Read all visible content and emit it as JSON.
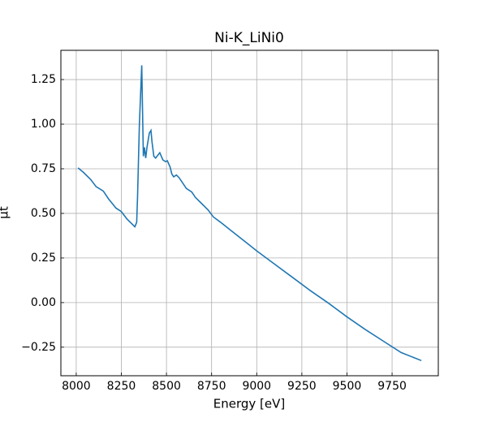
{
  "chart_data": {
    "type": "line",
    "title": "Ni-K_LiNi0",
    "xlabel": "Energy [eV]",
    "ylabel": "μt",
    "x": [
      8010,
      8040,
      8080,
      8110,
      8150,
      8180,
      8220,
      8250,
      8280,
      8325,
      8335,
      8340,
      8350,
      8363,
      8367,
      8372,
      8378,
      8385,
      8392,
      8405,
      8414,
      8420,
      8430,
      8440,
      8463,
      8480,
      8495,
      8505,
      8520,
      8530,
      8540,
      8555,
      8570,
      8590,
      8610,
      8640,
      8660,
      8690,
      8730,
      8760,
      8800,
      8850,
      8900,
      8950,
      9000,
      9100,
      9200,
      9300,
      9400,
      9500,
      9600,
      9700,
      9800,
      9912
    ],
    "values": [
      0.755,
      0.73,
      0.69,
      0.65,
      0.625,
      0.58,
      0.53,
      0.51,
      0.47,
      0.425,
      0.45,
      0.6,
      1.0,
      1.33,
      1.1,
      0.82,
      0.87,
      0.81,
      0.87,
      0.95,
      0.965,
      0.9,
      0.82,
      0.81,
      0.84,
      0.8,
      0.79,
      0.795,
      0.76,
      0.72,
      0.705,
      0.715,
      0.7,
      0.67,
      0.64,
      0.62,
      0.59,
      0.56,
      0.52,
      0.48,
      0.45,
      0.41,
      0.37,
      0.33,
      0.29,
      0.215,
      0.14,
      0.065,
      -0.005,
      -0.08,
      -0.15,
      -0.215,
      -0.28,
      -0.325
    ],
    "color": "#1f77b4",
    "xlim": [
      7915,
      10006
    ],
    "xticks": [
      8000,
      8250,
      8500,
      8750,
      9000,
      9250,
      9500,
      9750
    ],
    "ylim": [
      -0.41,
      1.414
    ],
    "yticks": [
      {
        "value": -0.25,
        "label": "−0.25"
      },
      {
        "value": 0,
        "label": "0.00"
      },
      0.25,
      {
        "value": 0.5,
        "label": "0.50"
      },
      0.75,
      {
        "value": 1,
        "label": "1.00"
      },
      1.25
    ],
    "grid": true
  }
}
